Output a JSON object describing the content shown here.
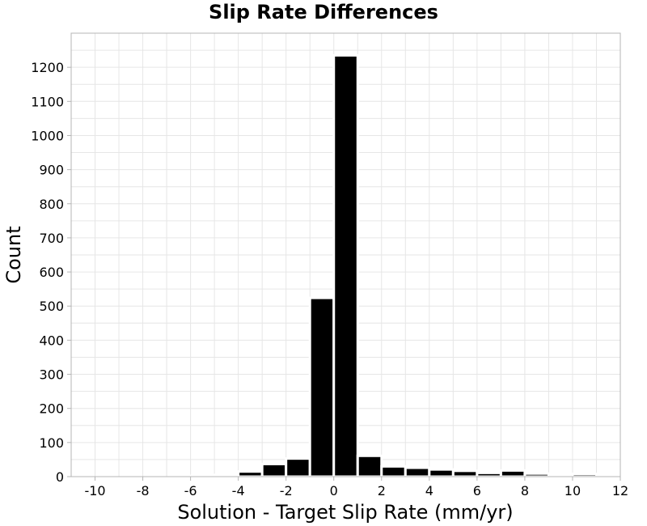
{
  "chart_data": {
    "type": "bar",
    "title": "Slip Rate Differences",
    "xlabel": "Solution - Target Slip Rate (mm/yr)",
    "ylabel": "Count",
    "xlim": [
      -11,
      12
    ],
    "ylim": [
      0,
      1300
    ],
    "xticks": [
      -10,
      -8,
      -6,
      -4,
      -2,
      0,
      2,
      4,
      6,
      8,
      10,
      12
    ],
    "yticks": [
      0,
      100,
      200,
      300,
      400,
      500,
      600,
      700,
      800,
      900,
      1000,
      1100,
      1200
    ],
    "bin_width": 1,
    "bins": [
      {
        "start": -6,
        "count": 2
      },
      {
        "start": -5,
        "count": 5
      },
      {
        "start": -4,
        "count": 15
      },
      {
        "start": -3,
        "count": 37
      },
      {
        "start": -2,
        "count": 53
      },
      {
        "start": -1,
        "count": 524
      },
      {
        "start": 0,
        "count": 1235
      },
      {
        "start": 1,
        "count": 61
      },
      {
        "start": 2,
        "count": 30
      },
      {
        "start": 3,
        "count": 26
      },
      {
        "start": 4,
        "count": 21
      },
      {
        "start": 5,
        "count": 17
      },
      {
        "start": 6,
        "count": 11
      },
      {
        "start": 7,
        "count": 18
      },
      {
        "start": 8,
        "count": 9
      },
      {
        "start": 9,
        "count": 6
      },
      {
        "start": 10,
        "count": 8
      }
    ],
    "grid": true,
    "colors": {
      "bar": "#000000",
      "bar_edge": "#ffffff",
      "grid": "#e6e6e6",
      "frame": "#b5b5b5"
    }
  }
}
